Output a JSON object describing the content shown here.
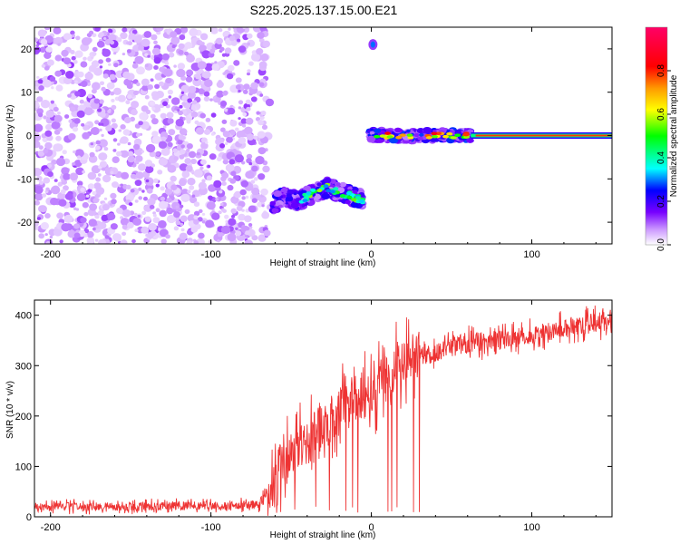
{
  "title": "S225.2025.137.15.00.E21",
  "colors": {
    "line": "#ee3333",
    "frame": "#000000"
  },
  "chart_data": [
    {
      "type": "heatmap",
      "xlabel": "Height of straight line (km)",
      "ylabel": "Frequency (Hz)",
      "xlim": [
        -210,
        150
      ],
      "ylim": [
        -25,
        25
      ],
      "x_ticks": [
        -200,
        -100,
        0,
        100
      ],
      "y_ticks": [
        -20,
        -10,
        0,
        10,
        20
      ],
      "colorbar": {
        "label": "Normalized spectral amplitude",
        "range": [
          0,
          1
        ],
        "ticks": [
          0.0,
          0.2,
          0.4,
          0.6,
          0.8
        ],
        "colormap": [
          "#ffffff",
          "#cc99ff",
          "#7700ff",
          "#0000ff",
          "#00ffff",
          "#00ff00",
          "#ffff00",
          "#ff9900",
          "#ff0000",
          "#ff0066"
        ]
      },
      "features": [
        {
          "region": "noise",
          "x_range": [
            -210,
            -65
          ],
          "f_range": [
            -25,
            25
          ],
          "amplitude": 0.1
        },
        {
          "region": "lower band",
          "x": [
            -62,
            -55,
            -45,
            -35,
            -28,
            -20,
            -12,
            -5
          ],
          "f": [
            -16,
            -14,
            -15,
            -13,
            -12,
            -13,
            -14,
            -15
          ],
          "amplitude": 0.35
        },
        {
          "region": "upper band",
          "x_range": [
            -2,
            150
          ],
          "f": 0,
          "amplitude": 0.6
        },
        {
          "region": "blob",
          "x": 1,
          "f": 21,
          "amplitude": 0.3
        }
      ]
    },
    {
      "type": "line",
      "xlabel": "Height of straight line (km)",
      "ylabel": "SNR (10 * v/v)",
      "xlim": [
        -210,
        150
      ],
      "ylim": [
        0,
        430
      ],
      "x_ticks": [
        -200,
        -100,
        0,
        100
      ],
      "y_ticks": [
        0,
        100,
        200,
        300,
        400
      ],
      "series": [
        {
          "x": [
            -210,
            -180,
            -150,
            -120,
            -90,
            -70,
            -60,
            -50,
            -40,
            -30,
            -20,
            -10,
            0,
            10,
            20,
            30,
            40,
            50,
            60,
            80,
            100,
            120,
            150
          ],
          "values": [
            20,
            20,
            20,
            22,
            22,
            24,
            80,
            120,
            150,
            180,
            210,
            240,
            240,
            280,
            310,
            320,
            325,
            340,
            345,
            350,
            360,
            375,
            390
          ]
        }
      ]
    }
  ]
}
